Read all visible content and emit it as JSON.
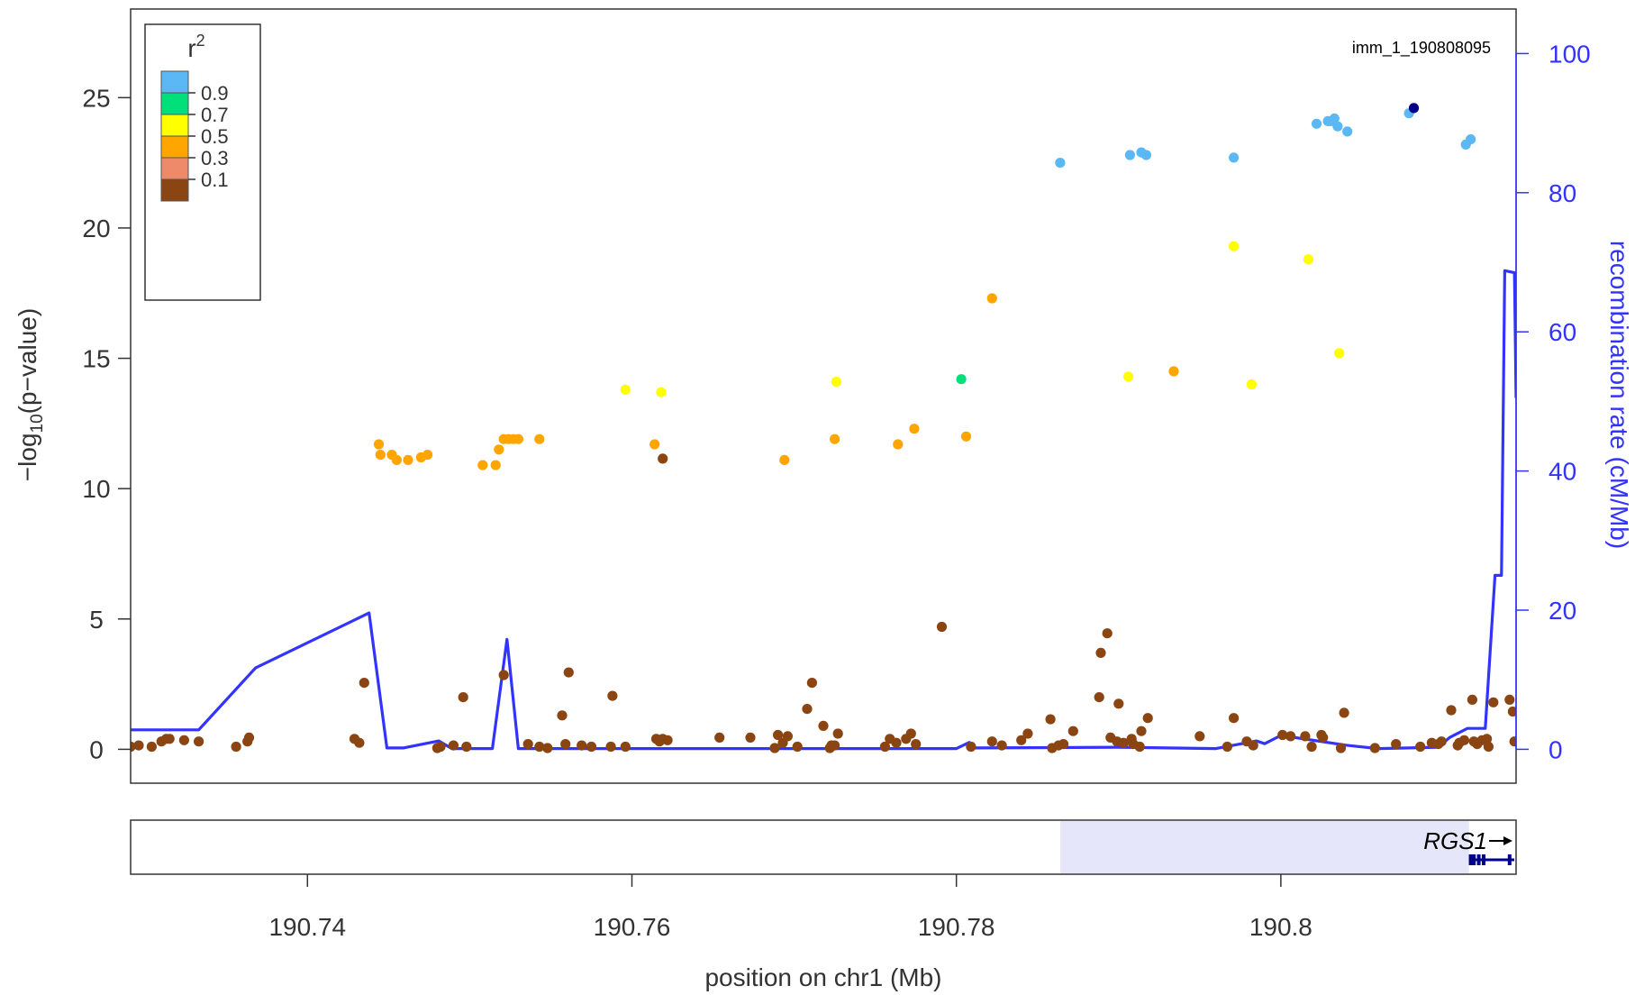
{
  "chart_data": {
    "type": "scatter",
    "title": "",
    "xlabel": "position on chr1 (Mb)",
    "ylabel_left": {
      "pre": "−log",
      "sub": "10",
      "post": "(p−value)"
    },
    "ylabel_right": "recombination rate (cM/Mb)",
    "xlim": [
      190.7291,
      190.8145
    ],
    "ylim": [
      -1.3,
      28.4
    ],
    "ylim_right": [
      -4.87,
      106.4
    ],
    "x_ticks": [
      190.74,
      190.76,
      190.78,
      190.8
    ],
    "x_tick_labels": [
      "190.74",
      "190.76",
      "190.78",
      "190.8"
    ],
    "y_ticks": [
      0,
      5,
      10,
      15,
      20,
      25
    ],
    "y_tick_labels": [
      "0",
      "5",
      "10",
      "15",
      "20",
      "25"
    ],
    "y2_ticks": [
      0,
      20,
      40,
      60,
      80,
      100
    ],
    "y2_tick_labels": [
      "0",
      "20",
      "40",
      "60",
      "80",
      "100"
    ],
    "lead_snp": {
      "label": "imm_1_190808095",
      "x": 190.8082,
      "y": 24.6,
      "color": "#00008b"
    },
    "legend": {
      "title": "r",
      "title_sup": "2",
      "placement": "top-left",
      "bins": [
        {
          "label": "",
          "color": "#5bb8f5"
        },
        {
          "label": "0.9",
          "color": "#00e07a"
        },
        {
          "label": "0.7",
          "color": "#ffff00"
        },
        {
          "label": "0.5",
          "color": "#ffa500"
        },
        {
          "label": "0.3",
          "color": "#ee8a6a"
        },
        {
          "label": "0.1",
          "color": "#8b4513"
        }
      ]
    },
    "colors": {
      "r2_0_8_1": "#5bb8f5",
      "r2_0_6_0_8": "#00e07a",
      "r2_0_4_0_6": "#ffff00",
      "r2_0_2_0_4": "#ffa500",
      "r2_0_0_2": "#8b4513",
      "recombination": "#3333ff",
      "right_axis": "#3333ff",
      "gene": "#00008b",
      "gene_region": "#e6e6fa"
    },
    "series": [
      {
        "r2_bin": "0.8-1.0",
        "color": "#5bb8f5",
        "points": [
          [
            190.7864,
            22.5
          ],
          [
            190.7907,
            22.8
          ],
          [
            190.7914,
            22.9
          ],
          [
            190.7917,
            22.8
          ],
          [
            190.7971,
            22.7
          ],
          [
            190.8022,
            24.0
          ],
          [
            190.8029,
            24.1
          ],
          [
            190.8031,
            24.1
          ],
          [
            190.8033,
            24.2
          ],
          [
            190.8035,
            23.9
          ],
          [
            190.8041,
            23.7
          ],
          [
            190.8079,
            24.4
          ],
          [
            190.8114,
            23.2
          ],
          [
            190.8117,
            23.4
          ]
        ]
      },
      {
        "r2_bin": "0.6-0.8",
        "color": "#00e07a",
        "points": [
          [
            190.7803,
            14.2
          ]
        ]
      },
      {
        "r2_bin": "0.4-0.6",
        "color": "#ffff00",
        "points": [
          [
            190.7596,
            13.8
          ],
          [
            190.7618,
            13.7
          ],
          [
            190.7726,
            14.1
          ],
          [
            190.7906,
            14.3
          ],
          [
            190.7971,
            19.3
          ],
          [
            190.7982,
            14.0
          ],
          [
            190.8017,
            18.8
          ],
          [
            190.8036,
            15.2
          ]
        ]
      },
      {
        "r2_bin": "0.2-0.4",
        "color": "#ffa500",
        "points": [
          [
            190.7444,
            11.7
          ],
          [
            190.7445,
            11.3
          ],
          [
            190.7452,
            11.3
          ],
          [
            190.7455,
            11.1
          ],
          [
            190.7462,
            11.1
          ],
          [
            190.747,
            11.2
          ],
          [
            190.7474,
            11.3
          ],
          [
            190.7508,
            10.9
          ],
          [
            190.7516,
            10.9
          ],
          [
            190.7518,
            11.5
          ],
          [
            190.7521,
            11.9
          ],
          [
            190.7524,
            11.9
          ],
          [
            190.7527,
            11.9
          ],
          [
            190.753,
            11.9
          ],
          [
            190.7543,
            11.9
          ],
          [
            190.7614,
            11.7
          ],
          [
            190.7694,
            11.1
          ],
          [
            190.7725,
            11.9
          ],
          [
            190.7764,
            11.7
          ],
          [
            190.7774,
            12.3
          ],
          [
            190.7806,
            12.0
          ],
          [
            190.7822,
            17.3
          ],
          [
            190.7934,
            14.5
          ]
        ]
      },
      {
        "r2_bin": "0.0-0.2",
        "color": "#8b4513",
        "points": [
          [
            190.7291,
            0.1
          ],
          [
            190.7296,
            0.15
          ],
          [
            190.7304,
            0.1
          ],
          [
            190.731,
            0.3
          ],
          [
            190.7313,
            0.4
          ],
          [
            190.7315,
            0.4
          ],
          [
            190.7324,
            0.35
          ],
          [
            190.7333,
            0.3
          ],
          [
            190.7356,
            0.1
          ],
          [
            190.7363,
            0.3
          ],
          [
            190.7364,
            0.45
          ],
          [
            190.7429,
            0.4
          ],
          [
            190.7432,
            0.25
          ],
          [
            190.7435,
            2.55
          ],
          [
            190.748,
            0.05
          ],
          [
            190.7482,
            0.1
          ],
          [
            190.749,
            0.15
          ],
          [
            190.7496,
            2.0
          ],
          [
            190.7498,
            0.1
          ],
          [
            190.7521,
            2.85
          ],
          [
            190.7536,
            0.2
          ],
          [
            190.7543,
            0.1
          ],
          [
            190.7548,
            0.05
          ],
          [
            190.7557,
            1.3
          ],
          [
            190.7559,
            0.2
          ],
          [
            190.7561,
            2.95
          ],
          [
            190.7569,
            0.15
          ],
          [
            190.7575,
            0.1
          ],
          [
            190.7587,
            0.1
          ],
          [
            190.7588,
            2.05
          ],
          [
            190.7596,
            0.1
          ],
          [
            190.7615,
            0.4
          ],
          [
            190.7617,
            0.3
          ],
          [
            190.7619,
            0.4
          ],
          [
            190.7619,
            11.15
          ],
          [
            190.7622,
            0.35
          ],
          [
            190.7654,
            0.45
          ],
          [
            190.7673,
            0.45
          ],
          [
            190.7688,
            0.05
          ],
          [
            190.769,
            0.55
          ],
          [
            190.7693,
            0.25
          ],
          [
            190.7696,
            0.5
          ],
          [
            190.7702,
            0.1
          ],
          [
            190.7708,
            1.55
          ],
          [
            190.7711,
            2.55
          ],
          [
            190.7718,
            0.9
          ],
          [
            190.7722,
            0.05
          ],
          [
            190.7723,
            0.15
          ],
          [
            190.7725,
            0.15
          ],
          [
            190.7727,
            0.6
          ],
          [
            190.7756,
            0.1
          ],
          [
            190.7759,
            0.4
          ],
          [
            190.7763,
            0.25
          ],
          [
            190.7769,
            0.4
          ],
          [
            190.7772,
            0.6
          ],
          [
            190.7775,
            0.2
          ],
          [
            190.7791,
            4.7
          ],
          [
            190.7809,
            0.1
          ],
          [
            190.7822,
            0.3
          ],
          [
            190.7828,
            0.15
          ],
          [
            190.784,
            0.35
          ],
          [
            190.7844,
            0.6
          ],
          [
            190.7858,
            1.15
          ],
          [
            190.7859,
            0.05
          ],
          [
            190.7863,
            0.15
          ],
          [
            190.7866,
            0.2
          ],
          [
            190.7872,
            0.7
          ],
          [
            190.7888,
            2.0
          ],
          [
            190.7889,
            3.7
          ],
          [
            190.7893,
            4.45
          ],
          [
            190.7895,
            0.45
          ],
          [
            190.7899,
            0.3
          ],
          [
            190.79,
            1.75
          ],
          [
            190.7903,
            0.25
          ],
          [
            190.7908,
            0.4
          ],
          [
            190.7909,
            0.2
          ],
          [
            190.7913,
            0.1
          ],
          [
            190.7914,
            0.7
          ],
          [
            190.7918,
            1.2
          ],
          [
            190.795,
            0.5
          ],
          [
            190.7967,
            0.1
          ],
          [
            190.7971,
            1.2
          ],
          [
            190.7979,
            0.3
          ],
          [
            190.7983,
            0.15
          ],
          [
            190.8001,
            0.55
          ],
          [
            190.8006,
            0.5
          ],
          [
            190.8015,
            0.5
          ],
          [
            190.8019,
            0.1
          ],
          [
            190.8025,
            0.55
          ],
          [
            190.8026,
            0.45
          ],
          [
            190.8037,
            0.05
          ],
          [
            190.8039,
            1.4
          ],
          [
            190.8058,
            0.05
          ],
          [
            190.8071,
            0.2
          ],
          [
            190.8086,
            0.1
          ],
          [
            190.8093,
            0.25
          ],
          [
            190.8097,
            0.2
          ],
          [
            190.8099,
            0.3
          ],
          [
            190.8105,
            1.5
          ],
          [
            190.8109,
            0.15
          ],
          [
            190.811,
            0.25
          ],
          [
            190.8113,
            0.35
          ],
          [
            190.8118,
            1.9
          ],
          [
            190.8119,
            0.3
          ],
          [
            190.8121,
            0.2
          ],
          [
            190.8124,
            0.35
          ],
          [
            190.8127,
            0.4
          ],
          [
            190.8128,
            0.1
          ],
          [
            190.8131,
            1.8
          ],
          [
            190.8141,
            1.9
          ],
          [
            190.8143,
            1.45
          ],
          [
            190.8144,
            0.3
          ]
        ]
      }
    ],
    "recombination_rate": {
      "color": "#3333ff",
      "points": [
        [
          190.7291,
          2.8
        ],
        [
          190.7333,
          2.8
        ],
        [
          190.7368,
          11.7
        ],
        [
          190.7438,
          19.6
        ],
        [
          190.7449,
          0.2
        ],
        [
          190.7459,
          0.2
        ],
        [
          190.7481,
          1.2
        ],
        [
          190.7489,
          0.1
        ],
        [
          190.7514,
          0.1
        ],
        [
          190.7523,
          15.8
        ],
        [
          190.753,
          0.1
        ],
        [
          190.77,
          0.1
        ],
        [
          190.78,
          0.1
        ],
        [
          190.7808,
          1.0
        ],
        [
          190.7812,
          0.2
        ],
        [
          190.79,
          0.3
        ],
        [
          190.796,
          0.1
        ],
        [
          190.7985,
          1.2
        ],
        [
          190.799,
          0.8
        ],
        [
          190.8,
          2.0
        ],
        [
          190.804,
          0.6
        ],
        [
          190.806,
          0.1
        ],
        [
          190.8097,
          0.3
        ],
        [
          190.8104,
          1.7
        ],
        [
          190.8115,
          3.0
        ],
        [
          190.8126,
          3.0
        ],
        [
          190.8132,
          25.0
        ],
        [
          190.8136,
          25.0
        ],
        [
          190.8138,
          68.8
        ],
        [
          190.8144,
          68.5
        ],
        [
          190.8145,
          50.5
        ]
      ]
    },
    "gene_track": {
      "genes": [
        {
          "name": "RGS1",
          "strand": "+",
          "start": 190.8116,
          "end": 190.8145,
          "exons": [
            190.8117,
            190.8119,
            190.8122,
            190.8125,
            190.8141
          ]
        }
      ],
      "highlight_region": [
        190.7864,
        190.8116
      ]
    }
  }
}
